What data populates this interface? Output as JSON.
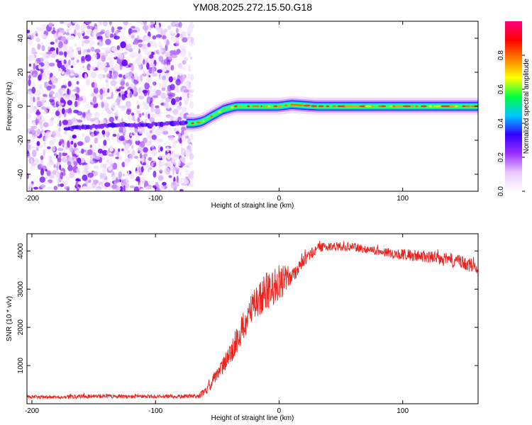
{
  "figure_title": "YM08.2025.272.15.50.G18",
  "chart_data": [
    {
      "type": "heatmap",
      "title": "",
      "xlabel": "Height of straight line (km)",
      "ylabel": "Frequency (Hz)",
      "xlim": [
        -204,
        161
      ],
      "ylim": [
        -50,
        50
      ],
      "xticks": [
        -200,
        -100,
        0,
        100
      ],
      "yticks": [
        -40,
        -20,
        0,
        20,
        40
      ],
      "grid": false,
      "ridge": {
        "x": [
          -170,
          -150,
          -130,
          -110,
          -90,
          -75,
          -68,
          -62,
          -55,
          -45,
          -35,
          -25,
          -15,
          -5,
          0,
          10,
          30,
          60,
          90,
          120,
          161
        ],
        "y": [
          -13,
          -12,
          -11,
          -11,
          -10,
          -10,
          -10,
          -9,
          -6,
          -2,
          0,
          0,
          0,
          0,
          0,
          1,
          0,
          0,
          0,
          0,
          0
        ]
      },
      "noise_region_x": [
        -204,
        -70
      ],
      "colorbar": {
        "label": "Normalized spectral amplitude",
        "range": [
          0.0,
          1.0
        ],
        "ticks": [
          0.0,
          0.2,
          0.4,
          0.6,
          0.8
        ],
        "colors": [
          "#ffffff",
          "#e9c7ff",
          "#9b30ff",
          "#3300ff",
          "#00c8ff",
          "#00ff40",
          "#ffff00",
          "#ff7f00",
          "#ff0000",
          "#ff0080"
        ]
      }
    },
    {
      "type": "line",
      "title": "",
      "xlabel": "Height of straight line (km)",
      "ylabel": "SNR (10 * v/v)",
      "xlim": [
        -204,
        161
      ],
      "ylim": [
        0,
        4450
      ],
      "xticks": [
        -200,
        -100,
        0,
        100
      ],
      "yticks": [
        1000,
        2000,
        3000,
        4000
      ],
      "grid": false,
      "color": "#e8241f",
      "series": [
        {
          "x": [
            -204,
            -180,
            -160,
            -140,
            -120,
            -100,
            -80,
            -65,
            -60,
            -50,
            -40,
            -30,
            -20,
            -10,
            0,
            10,
            20,
            30,
            40,
            50,
            60,
            80,
            100,
            120,
            140,
            161
          ],
          "values": [
            180,
            170,
            190,
            200,
            185,
            190,
            190,
            210,
            300,
            750,
            1300,
            1950,
            2600,
            2950,
            3150,
            3350,
            3750,
            4050,
            4120,
            4120,
            4100,
            4000,
            3900,
            3850,
            3750,
            3580
          ],
          "noise": [
            60,
            60,
            70,
            70,
            70,
            70,
            70,
            80,
            150,
            250,
            400,
            500,
            600,
            700,
            650,
            350,
            200,
            180,
            150,
            150,
            150,
            150,
            200,
            220,
            250,
            250
          ]
        }
      ]
    }
  ]
}
